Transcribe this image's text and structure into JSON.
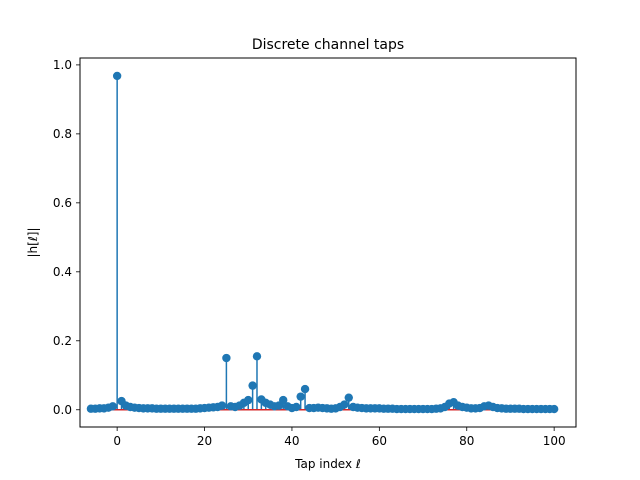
{
  "chart_data": {
    "type": "stem",
    "title": "Discrete channel taps",
    "xlabel": "Tap index ℓ",
    "ylabel": "|h[ℓ]|",
    "xlim": [
      -8.5,
      105
    ],
    "ylim": [
      -0.05,
      1.02
    ],
    "xticks": [
      "0",
      "20",
      "40",
      "60",
      "80",
      "100"
    ],
    "yticks": [
      "0.0",
      "0.2",
      "0.4",
      "0.6",
      "0.8",
      "1.0"
    ],
    "grid": false,
    "legend": "none",
    "x": [
      -6,
      -5,
      -4,
      -3,
      -2,
      -1,
      0,
      1,
      2,
      3,
      4,
      5,
      6,
      7,
      8,
      9,
      10,
      11,
      12,
      13,
      14,
      15,
      16,
      17,
      18,
      19,
      20,
      21,
      22,
      23,
      24,
      25,
      26,
      27,
      28,
      29,
      30,
      31,
      32,
      33,
      34,
      35,
      36,
      37,
      38,
      39,
      40,
      41,
      42,
      43,
      44,
      45,
      46,
      47,
      48,
      49,
      50,
      51,
      52,
      53,
      54,
      55,
      56,
      57,
      58,
      59,
      60,
      61,
      62,
      63,
      64,
      65,
      66,
      67,
      68,
      69,
      70,
      71,
      72,
      73,
      74,
      75,
      76,
      77,
      78,
      79,
      80,
      81,
      82,
      83,
      84,
      85,
      86,
      87,
      88,
      89,
      90,
      91,
      92,
      93,
      94,
      95,
      96,
      97,
      98,
      99,
      100
    ],
    "values": [
      0.003,
      0.003,
      0.004,
      0.004,
      0.006,
      0.01,
      0.968,
      0.025,
      0.012,
      0.008,
      0.006,
      0.005,
      0.004,
      0.004,
      0.004,
      0.003,
      0.003,
      0.003,
      0.003,
      0.003,
      0.003,
      0.003,
      0.003,
      0.003,
      0.003,
      0.004,
      0.005,
      0.006,
      0.007,
      0.008,
      0.012,
      0.15,
      0.01,
      0.008,
      0.012,
      0.02,
      0.028,
      0.07,
      0.155,
      0.03,
      0.02,
      0.015,
      0.01,
      0.012,
      0.028,
      0.01,
      0.005,
      0.008,
      0.038,
      0.06,
      0.005,
      0.005,
      0.006,
      0.005,
      0.004,
      0.003,
      0.004,
      0.008,
      0.015,
      0.035,
      0.008,
      0.006,
      0.005,
      0.004,
      0.004,
      0.004,
      0.004,
      0.003,
      0.003,
      0.003,
      0.002,
      0.002,
      0.002,
      0.002,
      0.002,
      0.002,
      0.002,
      0.002,
      0.002,
      0.003,
      0.004,
      0.008,
      0.018,
      0.022,
      0.012,
      0.008,
      0.006,
      0.004,
      0.004,
      0.005,
      0.01,
      0.012,
      0.008,
      0.005,
      0.004,
      0.003,
      0.003,
      0.003,
      0.003,
      0.002,
      0.002,
      0.002,
      0.002,
      0.002,
      0.002,
      0.002,
      0.002
    ],
    "colors": {
      "stem": "#1f77b4",
      "baseline": "#d62728",
      "frame": "#000000"
    }
  }
}
